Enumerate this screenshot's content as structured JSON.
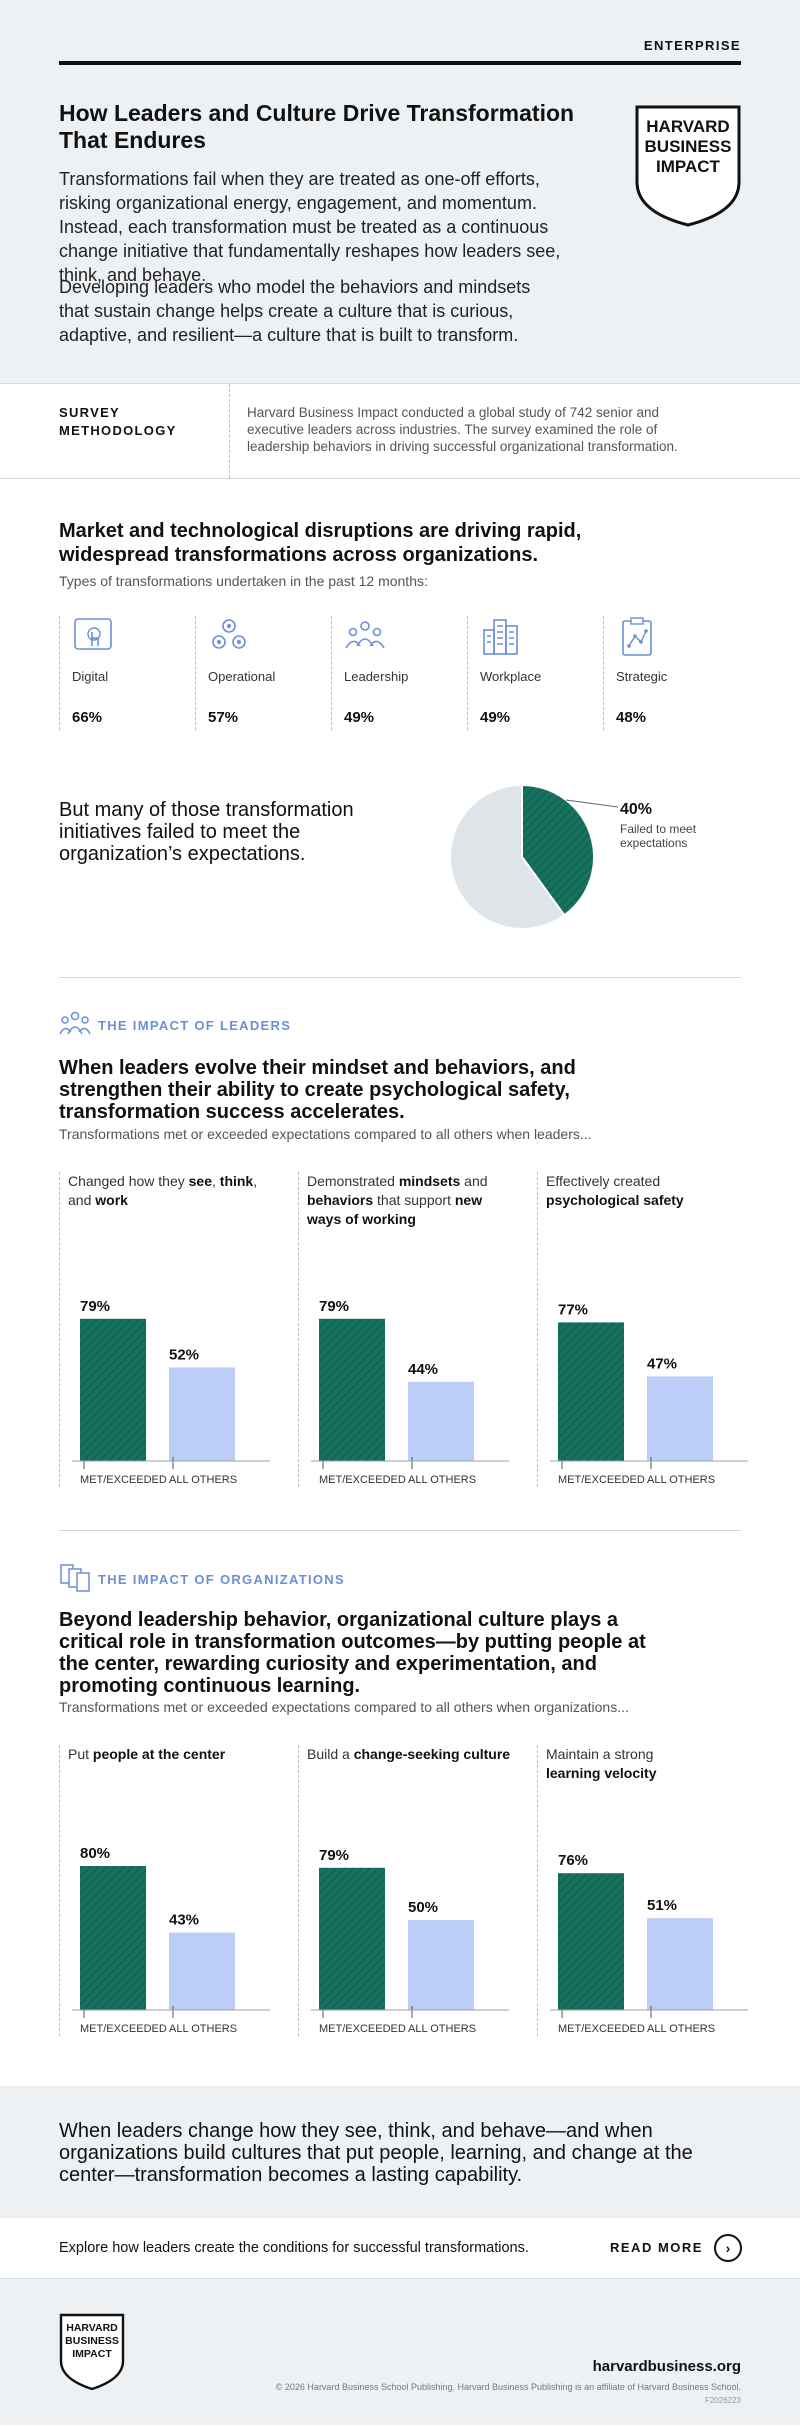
{
  "header": {
    "tag": "ENTERPRISE",
    "title": "How Leaders and Culture Drive Transformation That Endures",
    "para1": "Transformations fail when they are treated as one-off efforts, risking organizational energy, engagement, and momentum. Instead, each transformation must be treated as a continuous change initiative that fundamentally reshapes how leaders see, think, and behave.",
    "para2": "Developing leaders who model the behaviors and mindsets that sustain change helps create a culture that is curious, adaptive, and resilient—a culture that is built to transform.",
    "logo_lines": [
      "HARVARD",
      "BUSINESS",
      "IMPACT"
    ]
  },
  "methodology": {
    "label": "SURVEY METHODOLOGY",
    "text": "Harvard Business Impact conducted a global study of 742 senior and executive leaders across industries. The survey examined the role of leadership behaviors in driving successful organizational transformation."
  },
  "transformations": {
    "heading": "Market and technological disruptions are driving rapid, widespread transformations across organizations.",
    "subheading": "Types of transformations undertaken in the past 12 months:",
    "items": [
      {
        "name": "Digital",
        "pct": "66%",
        "icon": "touch-icon"
      },
      {
        "name": "Operational",
        "pct": "57%",
        "icon": "gears-icon"
      },
      {
        "name": "Leadership",
        "pct": "49%",
        "icon": "people-icon"
      },
      {
        "name": "Workplace",
        "pct": "49%",
        "icon": "buildings-icon"
      },
      {
        "name": "Strategic",
        "pct": "48%",
        "icon": "clipboard-icon"
      }
    ],
    "fail_text": "But many of those transformation initiatives failed to meet the organization’s  expectations.",
    "pie_pct": "40%",
    "pie_label": "Failed to meet expectations"
  },
  "leaders": {
    "kicker": "THE IMPACT OF LEADERS",
    "heading": "When leaders evolve their mindset and behaviors, and strengthen their ability to create psychological safety, transformation success accelerates.",
    "subheading": "Transformations met or exceeded expectations compared to all others when leaders...",
    "captions": [
      [
        "Changed how they ",
        "see",
        ", ",
        "think",
        ",\nand ",
        "work",
        ""
      ],
      [
        "Demonstrated ",
        "mindsets",
        " and\n",
        "behaviors",
        " that support ",
        "new\nways of working",
        ""
      ],
      [
        "Effectively created\n",
        "psychological safety",
        ""
      ]
    ]
  },
  "organizations": {
    "kicker": "THE IMPACT OF ORGANIZATIONS",
    "heading": "Beyond leadership behavior, organizational culture plays a critical role in transformation outcomes—by putting people at the center, rewarding curiosity and experimentation, and promoting continuous learning.",
    "subheading": "Transformations met or exceeded expectations compared to all others when organizations...",
    "captions": [
      [
        "Put ",
        "people at the center",
        ""
      ],
      [
        "Build a ",
        "change-seeking culture",
        ""
      ],
      [
        "Maintain a strong\n",
        "learning velocity",
        ""
      ]
    ]
  },
  "chart_data": [
    {
      "type": "pie",
      "title": "",
      "slices": [
        {
          "name": "Failed to meet expectations",
          "value": 40
        },
        {
          "name": "",
          "value": 60
        }
      ]
    },
    {
      "type": "bar",
      "title": "Changed how they see, think, and work",
      "categories": [
        "MET/EXCEEDED",
        "ALL OTHERS"
      ],
      "values": [
        79,
        52
      ],
      "labels": [
        "79%",
        "52%"
      ],
      "ylim": [
        0,
        100
      ]
    },
    {
      "type": "bar",
      "title": "Demonstrated mindsets and behaviors that support new ways of working",
      "categories": [
        "MET/EXCEEDED",
        "ALL OTHERS"
      ],
      "values": [
        79,
        44
      ],
      "labels": [
        "79%",
        "44%"
      ],
      "ylim": [
        0,
        100
      ]
    },
    {
      "type": "bar",
      "title": "Effectively created psychological safety",
      "categories": [
        "MET/EXCEEDED",
        "ALL OTHERS"
      ],
      "values": [
        77,
        47
      ],
      "labels": [
        "77%",
        "47%"
      ],
      "ylim": [
        0,
        100
      ]
    },
    {
      "type": "bar",
      "title": "Put people at the center",
      "categories": [
        "MET/EXCEEDED",
        "ALL OTHERS"
      ],
      "values": [
        80,
        43
      ],
      "labels": [
        "80%",
        "43%"
      ],
      "ylim": [
        0,
        100
      ]
    },
    {
      "type": "bar",
      "title": "Build a change-seeking culture",
      "categories": [
        "MET/EXCEEDED",
        "ALL OTHERS"
      ],
      "values": [
        79,
        50
      ],
      "labels": [
        "79%",
        "50%"
      ],
      "ylim": [
        0,
        100
      ]
    },
    {
      "type": "bar",
      "title": "Maintain a strong learning velocity",
      "categories": [
        "MET/EXCEEDED",
        "ALL OTHERS"
      ],
      "values": [
        76,
        51
      ],
      "labels": [
        "76%",
        "51%"
      ],
      "ylim": [
        0,
        100
      ]
    }
  ],
  "closing": {
    "text": "When leaders change how they see, think, and behave—and when organizations build cultures that put people, learning, and change at the center—transformation becomes a lasting capability.",
    "cta_text": "Explore how leaders create the conditions for successful transformations.",
    "read_more": "READ MORE"
  },
  "footer": {
    "url": "harvardbusiness.org",
    "copyright": "© 2026 Harvard Business School Publishing. Harvard Business Publishing is an affiliate of Harvard Business School.",
    "code": "F2026223"
  },
  "colors": {
    "dark_green": "#17715f",
    "light_blue": "#bccdf7",
    "accent_blue": "#6b8fd6",
    "pie_gray": "#dfe4e8"
  }
}
